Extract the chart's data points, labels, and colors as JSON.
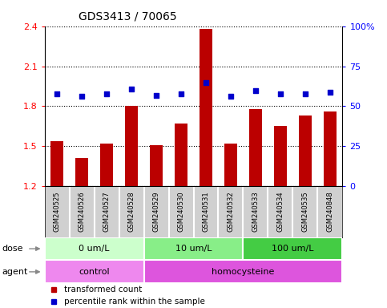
{
  "title": "GDS3413 / 70065",
  "samples": [
    "GSM240525",
    "GSM240526",
    "GSM240527",
    "GSM240528",
    "GSM240529",
    "GSM240530",
    "GSM240531",
    "GSM240532",
    "GSM240533",
    "GSM240534",
    "GSM240535",
    "GSM240848"
  ],
  "bar_values": [
    1.54,
    1.41,
    1.52,
    1.8,
    1.51,
    1.67,
    2.38,
    1.52,
    1.78,
    1.65,
    1.73,
    1.76
  ],
  "dot_percentiles": [
    58,
    56,
    58,
    61,
    57,
    58,
    65,
    56,
    60,
    58,
    58,
    59
  ],
  "bar_color": "#bb0000",
  "dot_color": "#0000cc",
  "ylim_left": [
    1.2,
    2.4
  ],
  "ylim_right": [
    0,
    100
  ],
  "yticks_left": [
    1.2,
    1.5,
    1.8,
    2.1,
    2.4
  ],
  "yticks_right": [
    0,
    25,
    50,
    75,
    100
  ],
  "ytick_labels_right": [
    "0",
    "25",
    "50",
    "75",
    "100%"
  ],
  "dose_groups": [
    {
      "label": "0 um/L",
      "start": 0,
      "end": 4,
      "color": "#ccffcc"
    },
    {
      "label": "10 um/L",
      "start": 4,
      "end": 8,
      "color": "#88ee88"
    },
    {
      "label": "100 um/L",
      "start": 8,
      "end": 12,
      "color": "#44cc44"
    }
  ],
  "agent_groups": [
    {
      "label": "control",
      "start": 0,
      "end": 4,
      "color": "#ee88ee"
    },
    {
      "label": "homocysteine",
      "start": 4,
      "end": 12,
      "color": "#dd55dd"
    }
  ],
  "legend_bar_label": "transformed count",
  "legend_dot_label": "percentile rank within the sample",
  "dose_label": "dose",
  "agent_label": "agent",
  "sample_bg": "#d0d0d0",
  "bar_width": 0.5
}
